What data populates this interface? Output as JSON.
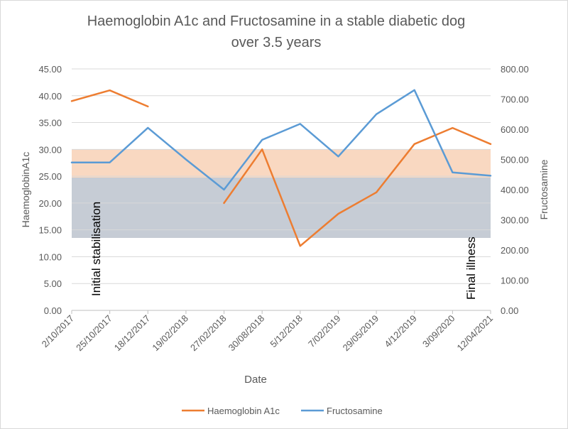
{
  "chart_data": {
    "type": "line",
    "title_line1": "Haemoglobin A1c and Fructosamine in a stable diabetic dog",
    "title_line2": "over 3.5 years",
    "xlabel": "Date",
    "ylabel": "HaemoglobinA1c",
    "y2label": "Fructosamine",
    "categories": [
      "2/10/2017",
      "25/10/2017",
      "18/12/2017",
      "19/02/2018",
      "27/02/2018",
      "30/08/2018",
      "5/12/2018",
      "7/02/2019",
      "29/05/2019",
      "4/12/2019",
      "3/09/2020",
      "12/04/2021"
    ],
    "ylim": [
      0,
      45
    ],
    "y_ticks": [
      "0.00",
      "5.00",
      "10.00",
      "15.00",
      "20.00",
      "25.00",
      "30.00",
      "35.00",
      "40.00",
      "45.00"
    ],
    "y2lim": [
      0,
      800
    ],
    "y2_ticks": [
      "0.00",
      "100.00",
      "200.00",
      "300.00",
      "400.00",
      "500.00",
      "600.00",
      "700.00",
      "800.00"
    ],
    "series": [
      {
        "name": "Haemoglobin A1c",
        "axis": "left",
        "color": "#ED7D31",
        "values": [
          39,
          41,
          38,
          null,
          20,
          30,
          12,
          18,
          22,
          31,
          34,
          31
        ]
      },
      {
        "name": "Fructosamine",
        "axis": "right",
        "color": "#5B9BD5",
        "values": [
          490,
          490,
          605,
          500,
          400,
          565,
          618,
          510,
          650,
          730,
          457,
          446
        ]
      }
    ],
    "bands": [
      {
        "name": "hba1c-reference-band",
        "axis": "left",
        "from": 13.5,
        "to": 30.0,
        "color": "#F4B183",
        "opacity": 0.5
      },
      {
        "name": "fructosamine-reference-band",
        "axis": "right",
        "from": 240,
        "to": 440,
        "color": "#9DC3E6",
        "opacity": 0.55
      }
    ],
    "annotations": [
      "Initial stabilisation",
      "Final  illness"
    ],
    "grid": "horizontal",
    "legend": "bottom"
  }
}
